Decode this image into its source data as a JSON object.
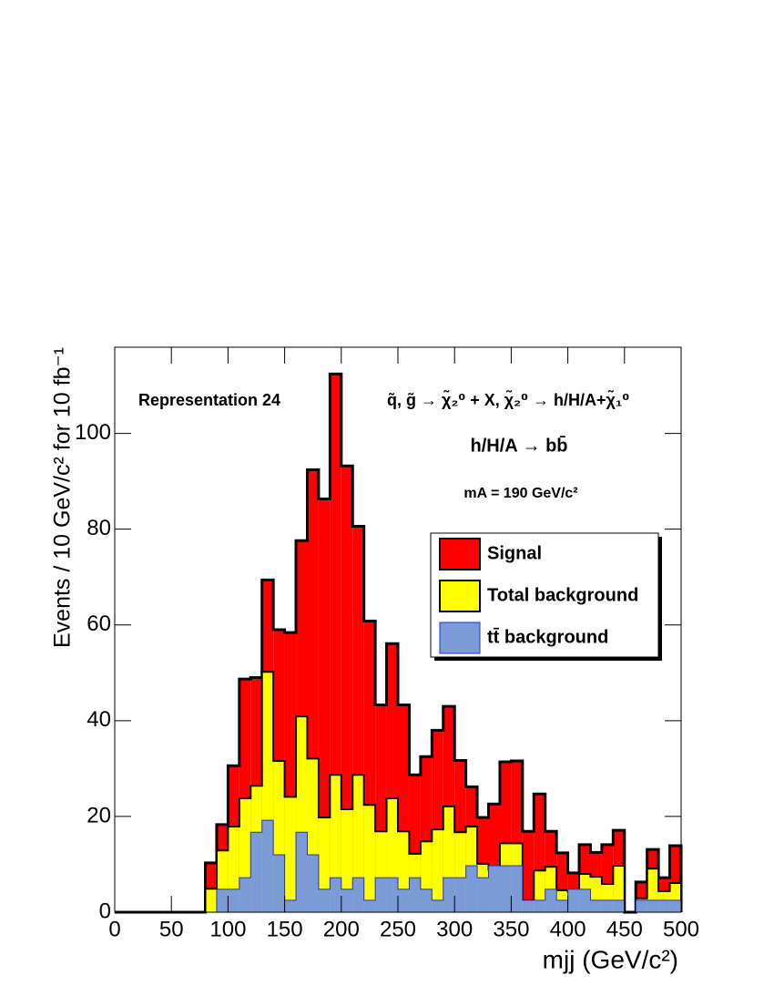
{
  "chart_data": {
    "type": "histogram",
    "annotations": [
      "Representation 24",
      "q̃, g̃ → χ̃₂⁰ + X,  χ̃₂⁰ → h/H/A+χ̃₁⁰",
      "h/H/A → bb̄",
      "mA = 190 GeV/c²"
    ],
    "xlabel": "mjj (GeV/c²)",
    "ylabel": "Events / 10 GeV/c² for 10 fb⁻¹",
    "bins": [
      0,
      10,
      20,
      30,
      40,
      50,
      60,
      70,
      80,
      90,
      100,
      110,
      120,
      130,
      140,
      150,
      160,
      170,
      180,
      190,
      200,
      210,
      220,
      230,
      240,
      250,
      260,
      270,
      280,
      290,
      300,
      310,
      320,
      330,
      340,
      350,
      360,
      370,
      380,
      390,
      400,
      410,
      420,
      430,
      440,
      450,
      460,
      470,
      480,
      490,
      500
    ],
    "series": [
      {
        "name": "Signal",
        "color": "#ff0000",
        "values": [
          0,
          0,
          0,
          0,
          0,
          0,
          0,
          0,
          10.3,
          18.3,
          30.6,
          48.7,
          49,
          69.4,
          59,
          58.4,
          77.6,
          92.4,
          86.3,
          112.4,
          93.2,
          80.6,
          60.8,
          43.3,
          56.1,
          43.3,
          28.7,
          32.5,
          38,
          43,
          31.7,
          26.2,
          19.8,
          22.6,
          31.4,
          31.6,
          16.9,
          24.7,
          16.9,
          12.4,
          8.2,
          14.1,
          12.5,
          14.1,
          17.1,
          0,
          6.3,
          13.1,
          7.2,
          13.9
        ]
      },
      {
        "name": "Total background",
        "color": "#ffff00",
        "values": [
          0,
          0,
          0,
          0,
          0,
          0,
          0,
          0,
          4.9,
          12.9,
          17.9,
          23.8,
          26.4,
          50.2,
          31.6,
          24.1,
          40.9,
          32.1,
          19.8,
          28.7,
          21.5,
          28.7,
          22.4,
          16.9,
          23.8,
          16.9,
          12.2,
          14.8,
          17.3,
          22.1,
          16.7,
          17.9,
          10.1,
          8.9,
          14.4,
          14.4,
          2.5,
          8.7,
          9.5,
          4.6,
          4.2,
          8,
          7.4,
          5.9,
          9.7,
          0,
          2.9,
          9.1,
          4.4,
          6.1
        ]
      },
      {
        "name": "tt̄ background",
        "color": "#7b9bd6",
        "values": [
          0,
          0,
          0,
          0,
          0,
          0,
          0,
          0,
          0,
          4.8,
          4.8,
          7.2,
          16.7,
          19.2,
          12,
          2.5,
          16.7,
          12,
          4.8,
          7.2,
          4.8,
          7.2,
          2.5,
          7.2,
          7.2,
          4.8,
          7.2,
          4.8,
          2.5,
          7.2,
          7.2,
          9.7,
          7.2,
          9.7,
          9.7,
          9.7,
          2.5,
          2.5,
          4.8,
          2.5,
          4.8,
          4.8,
          2.5,
          2.5,
          2.5,
          0,
          2.5,
          2.5,
          2.5,
          2.5
        ]
      }
    ],
    "xlim": [
      0,
      500
    ],
    "ylim": [
      0,
      118
    ],
    "xticks": [
      0,
      50,
      100,
      150,
      200,
      250,
      300,
      350,
      400,
      450,
      500
    ],
    "yticks": [
      0,
      20,
      40,
      60,
      80,
      100
    ],
    "legend": "upper right"
  }
}
